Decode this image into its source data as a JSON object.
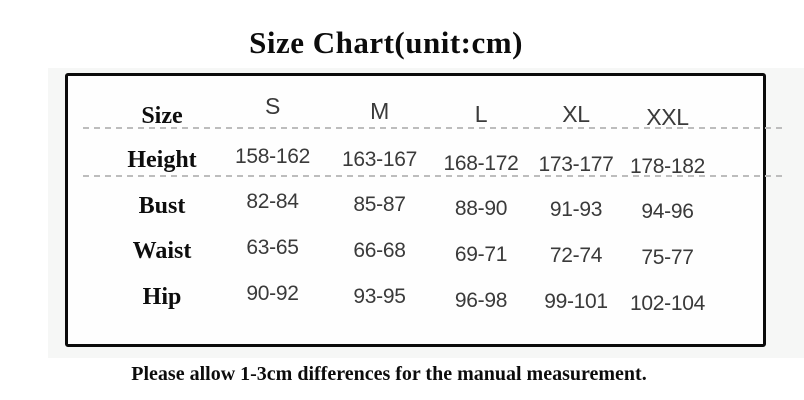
{
  "chart_data": {
    "type": "table",
    "title": "Size Chart(unit:cm)",
    "unit": "cm",
    "columns": [
      "Size",
      "S",
      "M",
      "L",
      "XL",
      "XXL"
    ],
    "rows": [
      {
        "label": "Height",
        "values": [
          "158-162",
          "163-167",
          "168-172",
          "173-177",
          "178-182"
        ]
      },
      {
        "label": "Bust",
        "values": [
          "82-84",
          "85-87",
          "88-90",
          "91-93",
          "94-96"
        ]
      },
      {
        "label": "Waist",
        "values": [
          "63-65",
          "66-68",
          "69-71",
          "72-74",
          "75-77"
        ]
      },
      {
        "label": "Hip",
        "values": [
          "90-92",
          "93-95",
          "96-98",
          "99-101",
          "102-104"
        ]
      }
    ],
    "note": "Please allow 1-3cm differences for the manual measurement.",
    "layout": {
      "grid": "off",
      "dashed_dividers": [
        "below header row",
        "below Height row"
      ]
    },
    "colors": {
      "table_border": "#0b0b0b",
      "label_text": "#0d0d0d",
      "value_text": "#3a3a3a",
      "divider": "#bdbdbd",
      "panel_background": "#f6f7f6"
    }
  }
}
